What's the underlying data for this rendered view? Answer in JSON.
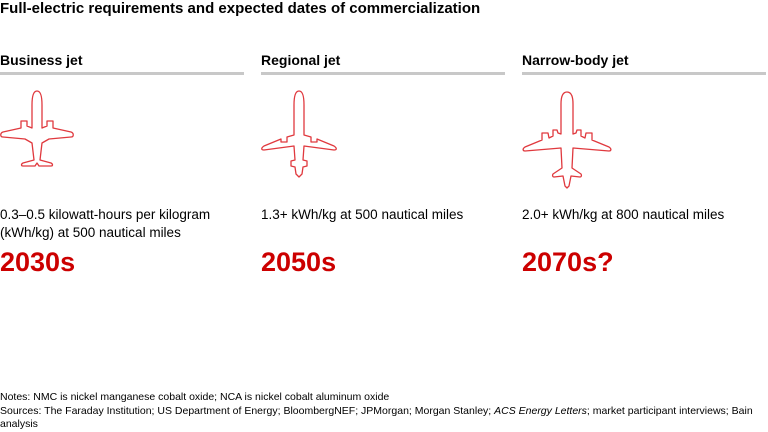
{
  "title": "Full-electric requirements and expected dates of commercialization",
  "accent_color": "#cc0000",
  "columns": [
    {
      "label": "Business jet",
      "icon": "business-jet-icon",
      "requirement": "0.3–0.5 kilowatt-hours per kilogram (kWh/kg) at 500 nautical miles",
      "date": "2030s"
    },
    {
      "label": "Regional jet",
      "icon": "regional-jet-icon",
      "requirement": "1.3+ kWh/kg at 500 nautical miles",
      "date": "2050s"
    },
    {
      "label": "Narrow-body jet",
      "icon": "narrow-body-jet-icon",
      "requirement": "2.0+ kWh/kg at 800 nautical miles",
      "date": "2070s?"
    }
  ],
  "notes": {
    "notes": "Notes: NMC is nickel manganese cobalt oxide; NCA is nickel cobalt aluminum oxide",
    "sources_prefix": "Sources: The Faraday Institution; US Department of Energy; BloombergNEF; JPMorgan; Morgan Stanley; ",
    "sources_italic": "ACS Energy Letters",
    "sources_suffix": "; market participant interviews; Bain analysis"
  }
}
